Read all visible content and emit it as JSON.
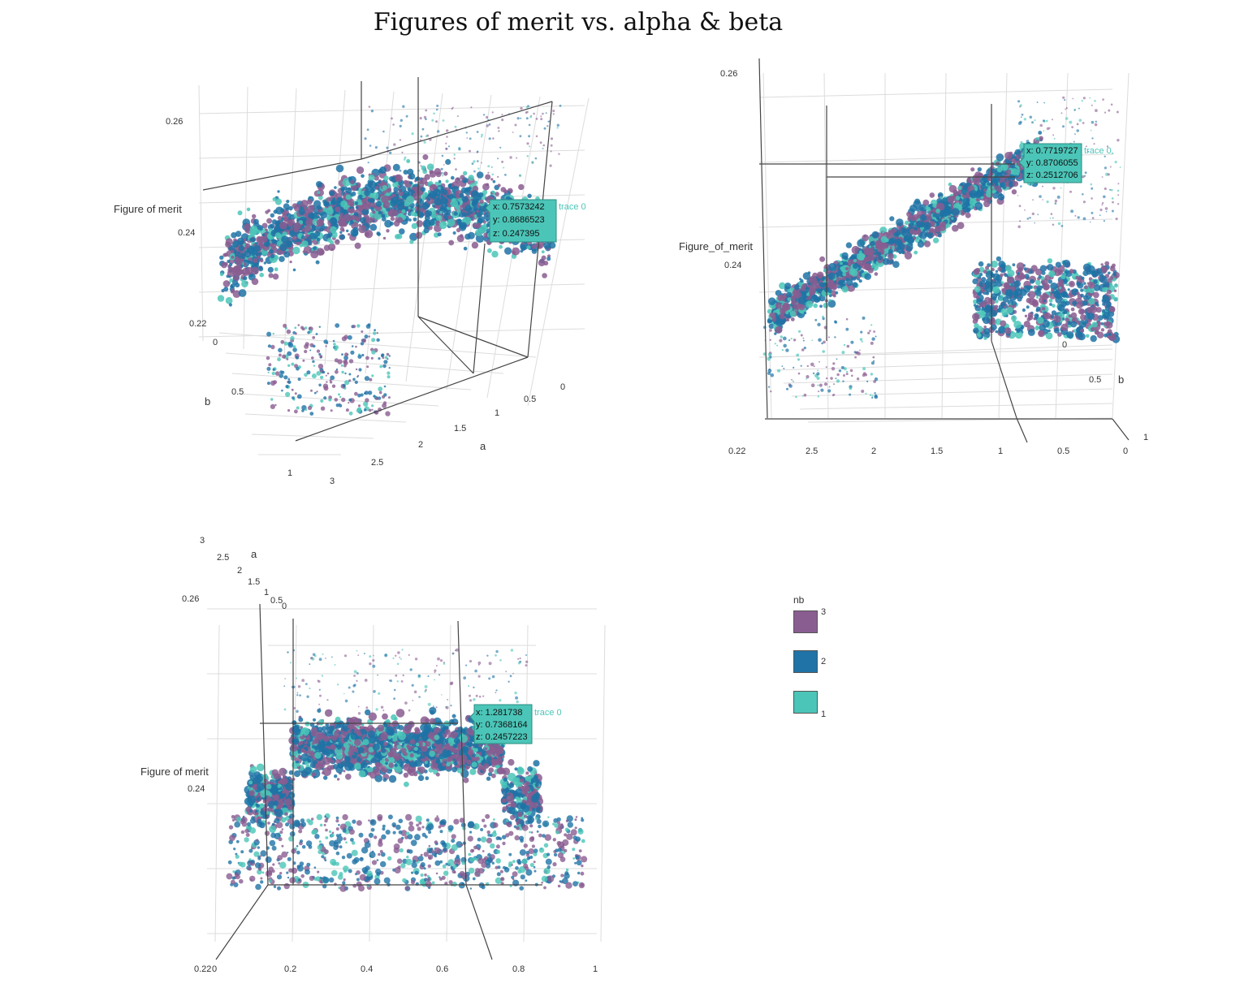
{
  "title": "Figures of merit vs. alpha & beta",
  "colors": {
    "nb1": "#4bc5b8",
    "nb2": "#1f73a6",
    "nb3": "#8a5d91",
    "grid": "#dcdcdc",
    "axis": "#444444"
  },
  "chart_data": [
    {
      "type": "scatter",
      "view": "3d-oblique",
      "zlabel": "Figure of merit",
      "ylabel": "b",
      "xlabel": "a",
      "z_ticks": [
        "0.26",
        "0.24",
        "0.22"
      ],
      "b_ticks": [
        "0",
        "0.5",
        "1"
      ],
      "a_ticks": [
        "0",
        "0.5",
        "1",
        "1.5",
        "2",
        "2.5",
        "3"
      ],
      "zlim": [
        0.22,
        0.26
      ],
      "xlim": [
        0,
        3
      ],
      "ylim": [
        0,
        1
      ],
      "hover": {
        "x": "x: 0.7573242",
        "y": "y: 0.8686523",
        "z": "z: 0.247395",
        "trace": "trace 0"
      }
    },
    {
      "type": "scatter",
      "view": "3d-side",
      "zlabel": "Figure_of_merit",
      "z_ticks": [
        "0.26",
        "0.24",
        "0.22"
      ],
      "a_ticks": [
        "2.5",
        "2",
        "1.5",
        "1",
        "0.5",
        "0"
      ],
      "b_ticks": [
        "0",
        "0.5",
        "1"
      ],
      "ylabel": "b",
      "hover": {
        "x": "x: 0.7719727",
        "y": "y: 0.8706055",
        "z": "z: 0.2512706",
        "trace": "trace 0"
      }
    },
    {
      "type": "scatter",
      "view": "3d-front",
      "zlabel": "Figure of merit",
      "z_ticks": [
        "0.26",
        "0.24",
        "0.22"
      ],
      "b_ticks": [
        "0",
        "0.2",
        "0.4",
        "0.6",
        "0.8",
        "1"
      ],
      "a_ticks": [
        "3",
        "2.5",
        "2",
        "1.5",
        "1",
        "0.5",
        "0"
      ],
      "xlabel": "a",
      "hover": {
        "x": "x: 1.281738",
        "y": "y: 0.7368164",
        "z": "z: 0.2457223",
        "trace": "trace 0"
      }
    }
  ],
  "legend": {
    "title": "nb",
    "items": [
      {
        "label": "3",
        "color": "#8a5d91"
      },
      {
        "label": "2",
        "color": "#1f73a6"
      },
      {
        "label": "1",
        "color": "#4bc5b8"
      }
    ]
  }
}
